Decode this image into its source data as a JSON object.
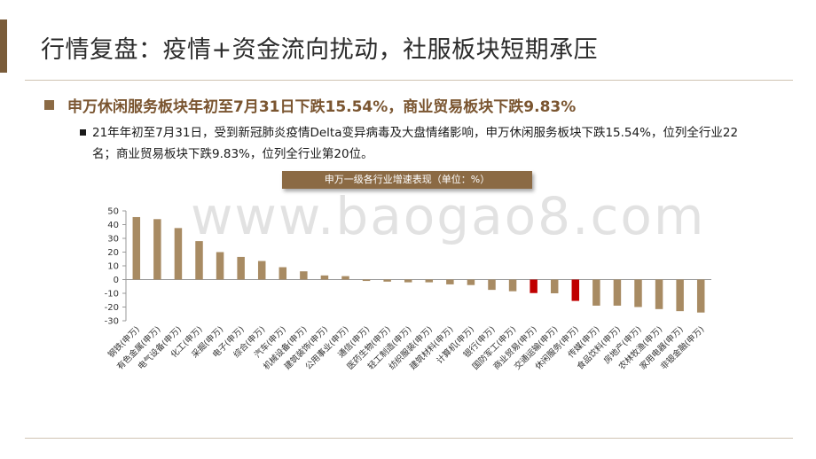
{
  "page": {
    "title": "行情复盘：疫情+资金流向扰动，社服板块短期承压",
    "headline": "申万休闲服务板块年初至7月31日下跌15.54%，商业贸易板块下跌9.83%",
    "body": "21年年初至7月31日，受到新冠肺炎疫情Delta变异病毒及大盘情绪影响，申万休闲服务板块下跌15.54%，位列全行业22名；商业贸易板块下跌9.83%，位列全行业第20位。",
    "watermark": "www.baogao8.com"
  },
  "chart_data": {
    "type": "bar",
    "title": "申万一级各行业增速表现（单位：%）",
    "categories": [
      "钢铁(申万)",
      "有色金属(申万)",
      "电气设备(申万)",
      "化工(申万)",
      "采掘(申万)",
      "电子(申万)",
      "综合(申万)",
      "汽车(申万)",
      "机械设备(申万)",
      "建筑装饰(申万)",
      "公用事业(申万)",
      "通信(申万)",
      "医药生物(申万)",
      "轻工制造(申万)",
      "纺织服装(申万)",
      "建筑材料(申万)",
      "计算机(申万)",
      "银行(申万)",
      "国防军工(申万)",
      "商业贸易(申万)",
      "交通运输(申万)",
      "休闲服务(申万)",
      "传媒(申万)",
      "食品饮料(申万)",
      "房地产(申万)",
      "农林牧渔(申万)",
      "家用电器(申万)",
      "非银金融(申万)"
    ],
    "values": [
      45.5,
      44,
      37.5,
      28,
      20,
      16.5,
      13.5,
      9,
      6,
      3,
      2.5,
      -1,
      -1.5,
      -2,
      -2,
      -3.5,
      -4,
      -7.5,
      -8.5,
      -9.83,
      -10,
      -15.54,
      -19,
      -19,
      -20,
      -21.5,
      -23,
      -24
    ],
    "highlight": [
      "商业贸易(申万)",
      "休闲服务(申万)"
    ],
    "ylim": [
      -30,
      50
    ],
    "yticks": [
      -30,
      -20,
      -10,
      0,
      10,
      20,
      30,
      40,
      50
    ],
    "colors": {
      "bar": "#a88b63",
      "highlight": "#c00000",
      "axis": "#999999"
    },
    "grid": false,
    "legend": "none"
  }
}
